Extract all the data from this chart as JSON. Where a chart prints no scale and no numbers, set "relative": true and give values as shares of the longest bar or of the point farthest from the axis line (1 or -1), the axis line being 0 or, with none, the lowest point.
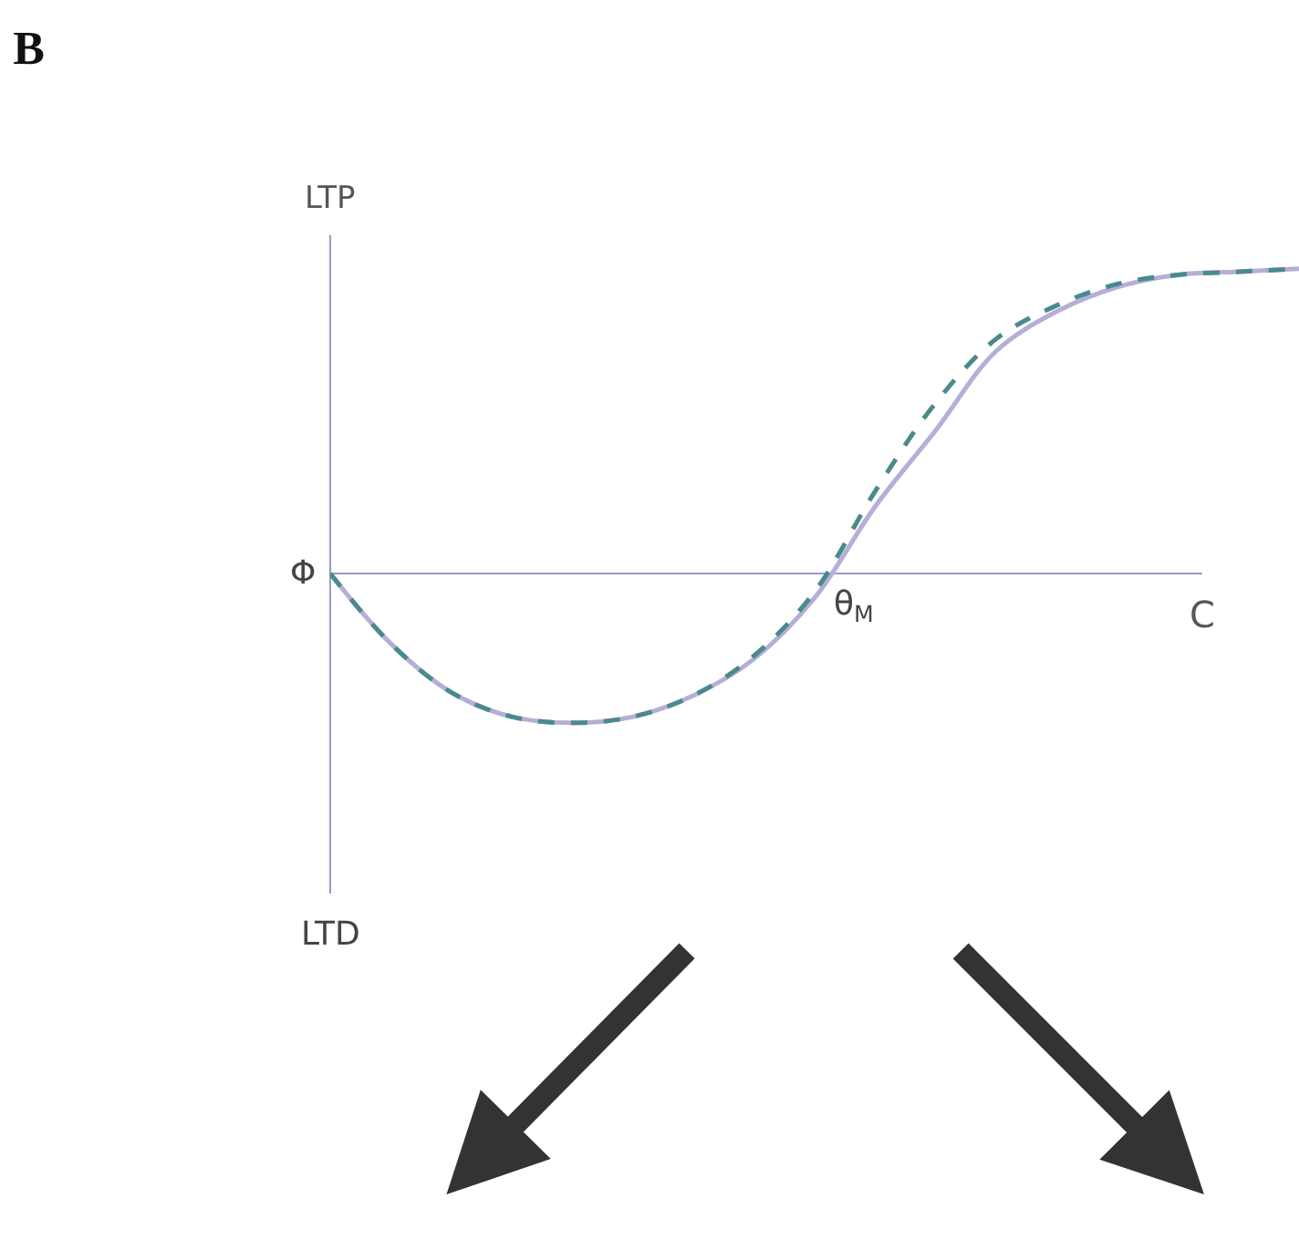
{
  "chart_data": {
    "type": "line",
    "title": "B",
    "ylabel": "LTP",
    "xlabel": "C",
    "relative": true,
    "ref_lines": [
      {
        "axis": "y",
        "value": 0,
        "color": "#9a9ac8"
      }
    ],
    "annotations": [
      "LTD",
      "Φ",
      "θ$_{M}$"
    ],
    "categories": [
      null,
      null,
      null,
      null,
      null,
      null,
      null,
      null,
      null,
      null,
      null,
      null,
      null,
      null,
      null,
      null,
      null
    ],
    "series": [
      {
        "color": "#b4aed8",
        "line_style": "solid",
        "values": [
          0,
          -0.23,
          -0.39,
          -0.47,
          -0.49,
          -0.47,
          -0.4,
          -0.28,
          -0.08,
          0.22,
          0.47,
          0.73,
          0.86,
          0.94,
          0.98,
          0.99,
          1
        ]
      },
      {
        "color": "#4a8a8a",
        "line_style": "dashed",
        "values": [
          0,
          -0.23,
          -0.39,
          -0.47,
          -0.49,
          -0.47,
          -0.4,
          -0.27,
          -0.06,
          0.27,
          0.56,
          0.77,
          0.88,
          0.95,
          0.98,
          0.99,
          1
        ]
      }
    ]
  }
}
